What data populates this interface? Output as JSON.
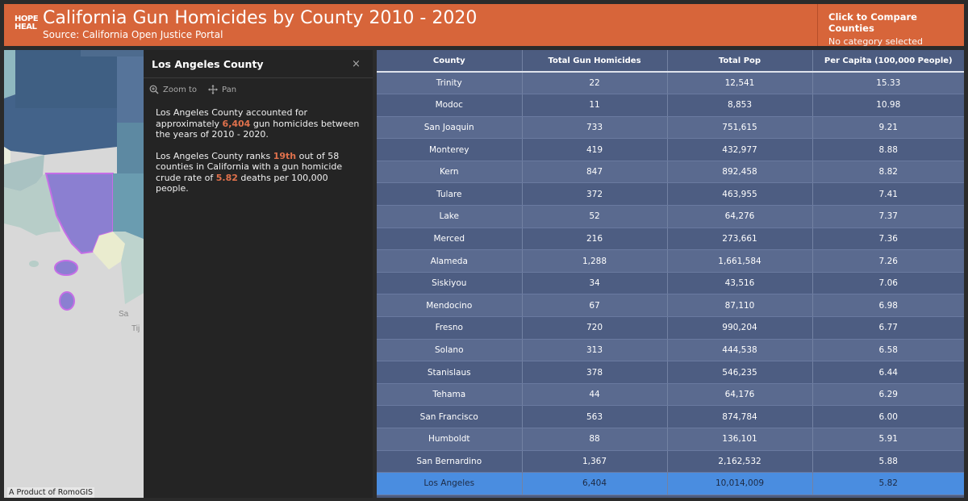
{
  "header": {
    "logo_line1": "HOPE",
    "logo_line2": "HEAL",
    "title": "California Gun Homicides by County 2010 - 2020",
    "subtitle": "Source: California Open Justice Portal",
    "compare_title": "Click to Compare Counties",
    "compare_status": "No category selected"
  },
  "map": {
    "attribution": "A Product of RomoGIS",
    "labels": [
      "Sa",
      "Tij"
    ]
  },
  "popup": {
    "title": "Los Angeles County",
    "close_symbol": "×",
    "zoom_label": "Zoom to",
    "pan_label": "Pan",
    "p1_before": "Los Angeles County accounted for approximately ",
    "p1_value": "6,404",
    "p1_after": " gun homicides between the years of 2010 - 2020.",
    "p2_before": "Los Angeles County ranks ",
    "p2_rank": "19th",
    "p2_middle": "  out of 58 counties in California with a gun homicide crude rate of ",
    "p2_rate": "5.82",
    "p2_after": "  deaths per 100,000 people."
  },
  "table": {
    "headers": [
      "County",
      "Total Gun Homicides",
      "Total Pop",
      "Per Capita (100,000 People)"
    ],
    "rows": [
      [
        "Trinity",
        "22",
        "12,541",
        "15.33"
      ],
      [
        "Modoc",
        "11",
        "8,853",
        "10.98"
      ],
      [
        "San Joaquin",
        "733",
        "751,615",
        "9.21"
      ],
      [
        "Monterey",
        "419",
        "432,977",
        "8.88"
      ],
      [
        "Kern",
        "847",
        "892,458",
        "8.82"
      ],
      [
        "Tulare",
        "372",
        "463,955",
        "7.41"
      ],
      [
        "Lake",
        "52",
        "64,276",
        "7.37"
      ],
      [
        "Merced",
        "216",
        "273,661",
        "7.36"
      ],
      [
        "Alameda",
        "1,288",
        "1,661,584",
        "7.26"
      ],
      [
        "Siskiyou",
        "34",
        "43,516",
        "7.06"
      ],
      [
        "Mendocino",
        "67",
        "87,110",
        "6.98"
      ],
      [
        "Fresno",
        "720",
        "990,204",
        "6.77"
      ],
      [
        "Solano",
        "313",
        "444,538",
        "6.58"
      ],
      [
        "Stanislaus",
        "378",
        "546,235",
        "6.44"
      ],
      [
        "Tehama",
        "44",
        "64,176",
        "6.29"
      ],
      [
        "San Francisco",
        "563",
        "874,784",
        "6.00"
      ],
      [
        "Humboldt",
        "88",
        "136,101",
        "5.91"
      ],
      [
        "San Bernardino",
        "1,367",
        "2,162,532",
        "5.88"
      ],
      [
        "Los Angeles",
        "6,404",
        "10,014,009",
        "5.82"
      ]
    ],
    "selected_county": "Los Angeles"
  },
  "colors": {
    "header_bg": "#d7653a",
    "highlight": "#e0714c",
    "selected_row": "#4a8de0",
    "selected_county_fill": "#8b7fd1"
  }
}
